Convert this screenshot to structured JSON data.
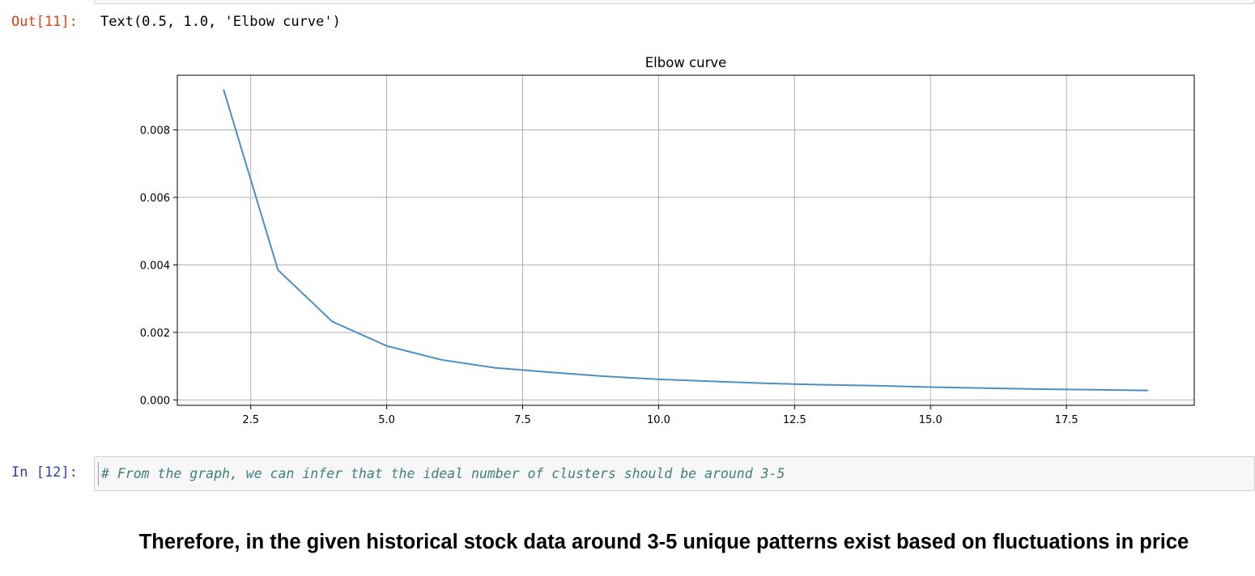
{
  "output_cell": {
    "prompt": "Out[11]:",
    "text": "Text(0.5, 1.0, 'Elbow curve')"
  },
  "input_cell": {
    "prompt": "In [12]:",
    "code": "# From the graph, we can infer that the ideal number of clusters should be around 3-5"
  },
  "markdown": {
    "text": "Therefore, in the given historical stock data around 3-5 unique patterns exist based on fluctuations in price"
  },
  "chart_data": {
    "type": "line",
    "title": "Elbow curve",
    "xlabel": "",
    "ylabel": "",
    "x": [
      2,
      3,
      4,
      5,
      6,
      7,
      8,
      9,
      10,
      11,
      12,
      13,
      14,
      15,
      16,
      17,
      18,
      19
    ],
    "y": [
      0.0092,
      0.00385,
      0.00232,
      0.0016,
      0.00119,
      0.00095,
      0.00082,
      0.0007,
      0.00061,
      0.00055,
      0.00049,
      0.00045,
      0.00042,
      0.00038,
      0.00035,
      0.00032,
      0.0003,
      0.00028
    ],
    "xlim": [
      1.15,
      19.85
    ],
    "ylim": [
      -0.00016,
      0.00962
    ],
    "xticks": [
      2.5,
      5.0,
      7.5,
      10.0,
      12.5,
      15.0,
      17.5
    ],
    "xtick_labels": [
      "2.5",
      "5.0",
      "7.5",
      "10.0",
      "12.5",
      "15.0",
      "17.5"
    ],
    "yticks": [
      0.0,
      0.002,
      0.004,
      0.006,
      0.008
    ],
    "ytick_labels": [
      "0.000",
      "0.002",
      "0.004",
      "0.006",
      "0.008"
    ],
    "grid": true,
    "line_color": "#4c8fc3"
  }
}
